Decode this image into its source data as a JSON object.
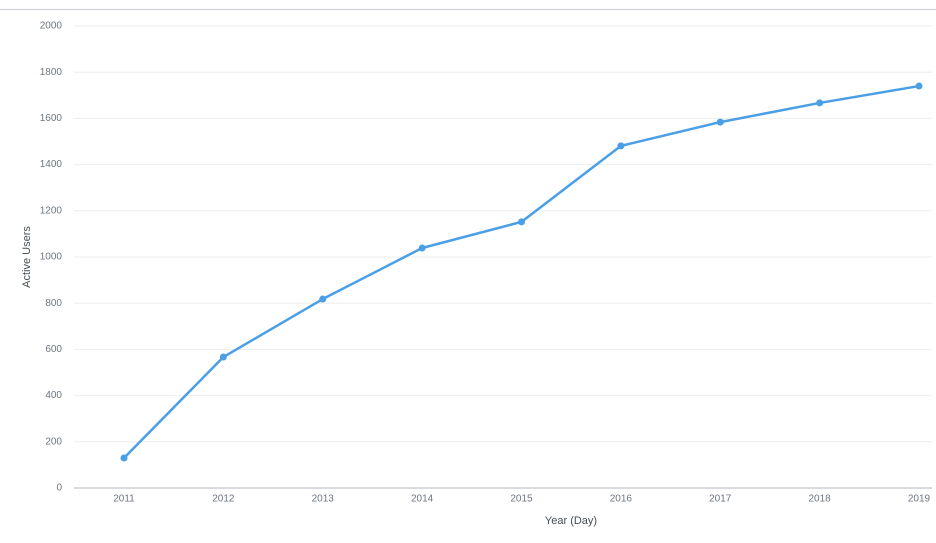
{
  "chart_data": {
    "type": "line",
    "x_label": "Year (Day)",
    "y_label": "Active Users",
    "categories": [
      "2011",
      "2012",
      "2013",
      "2014",
      "2015",
      "2016",
      "2017",
      "2018",
      "2019"
    ],
    "series": [
      {
        "name": "Active Users",
        "color": "#4a9fe6",
        "values": [
          130,
          567,
          818,
          1039,
          1152,
          1481,
          1584,
          1667,
          1740
        ]
      }
    ],
    "ylim": [
      0,
      2000
    ],
    "yticks": [
      0,
      200,
      400,
      600,
      800,
      1000,
      1200,
      1400,
      1600,
      1800,
      2000
    ],
    "grid": true
  }
}
